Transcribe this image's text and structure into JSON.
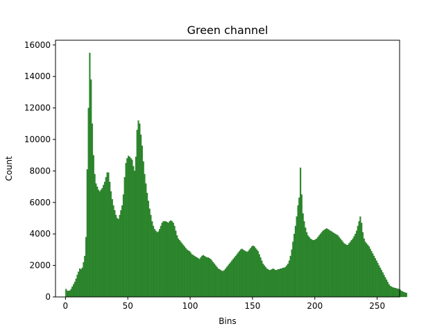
{
  "chart_data": {
    "type": "bar",
    "title": "Green channel",
    "xlabel": "Bins",
    "ylabel": "Count",
    "xlim": [
      -8,
      268
    ],
    "ylim": [
      0,
      16300
    ],
    "xticks": [
      0,
      50,
      100,
      150,
      200,
      250
    ],
    "yticks": [
      0,
      2000,
      4000,
      6000,
      8000,
      10000,
      12000,
      14000,
      16000
    ],
    "grid": false,
    "legend": "none",
    "colors": {
      "bar": "#2e8b2e",
      "edge": "#1f6b1f"
    },
    "bin_width": 1,
    "x_start": 0,
    "values": [
      500,
      380,
      380,
      400,
      500,
      650,
      800,
      950,
      1150,
      1400,
      1600,
      1800,
      1750,
      1850,
      2200,
      2600,
      3800,
      8100,
      12000,
      15500,
      13800,
      11000,
      9000,
      7800,
      7200,
      7000,
      6800,
      6700,
      6800,
      6900,
      7100,
      7300,
      7600,
      7900,
      7900,
      7300,
      6700,
      6200,
      5800,
      5500,
      5200,
      5000,
      4950,
      5200,
      5500,
      5800,
      6500,
      7600,
      8500,
      8800,
      8950,
      8900,
      8800,
      8700,
      8300,
      8000,
      8900,
      10600,
      11200,
      11000,
      10300,
      9600,
      8600,
      7800,
      7200,
      6600,
      6100,
      5600,
      5200,
      4800,
      4500,
      4300,
      4200,
      4100,
      4150,
      4300,
      4500,
      4700,
      4800,
      4800,
      4800,
      4750,
      4700,
      4800,
      4850,
      4800,
      4700,
      4500,
      4200,
      3900,
      3700,
      3600,
      3500,
      3400,
      3300,
      3200,
      3100,
      3000,
      2950,
      2900,
      2800,
      2700,
      2650,
      2600,
      2550,
      2500,
      2450,
      2400,
      2500,
      2600,
      2650,
      2600,
      2550,
      2500,
      2500,
      2450,
      2400,
      2300,
      2200,
      2100,
      2000,
      1900,
      1800,
      1750,
      1700,
      1650,
      1650,
      1700,
      1800,
      1900,
      2000,
      2100,
      2200,
      2300,
      2400,
      2500,
      2600,
      2700,
      2800,
      2900,
      3000,
      3050,
      3000,
      2950,
      2900,
      2850,
      2900,
      3000,
      3100,
      3200,
      3250,
      3200,
      3100,
      3000,
      2900,
      2700,
      2500,
      2300,
      2100,
      2000,
      1900,
      1800,
      1750,
      1700,
      1700,
      1750,
      1800,
      1750,
      1700,
      1700,
      1750,
      1750,
      1800,
      1800,
      1850,
      1850,
      1900,
      2000,
      2100,
      2300,
      2600,
      3000,
      3500,
      4000,
      4500,
      5100,
      5800,
      6300,
      8200,
      6500,
      5300,
      4800,
      4400,
      4100,
      3900,
      3800,
      3700,
      3650,
      3600,
      3600,
      3650,
      3700,
      3800,
      3900,
      4000,
      4100,
      4200,
      4250,
      4300,
      4350,
      4300,
      4250,
      4200,
      4150,
      4100,
      4050,
      4000,
      3950,
      3900,
      3800,
      3700,
      3600,
      3500,
      3400,
      3350,
      3300,
      3300,
      3400,
      3500,
      3600,
      3700,
      3850,
      4000,
      4200,
      4500,
      4800,
      5100,
      4700,
      4100,
      3700,
      3500,
      3400,
      3300,
      3200,
      3050,
      2900,
      2750,
      2600,
      2450,
      2300,
      2150,
      2000,
      1850,
      1700,
      1550,
      1400,
      1250,
      1100,
      950,
      800,
      700,
      650,
      600,
      580,
      560,
      540,
      520,
      500,
      450,
      380,
      350,
      300,
      280,
      250
    ]
  }
}
